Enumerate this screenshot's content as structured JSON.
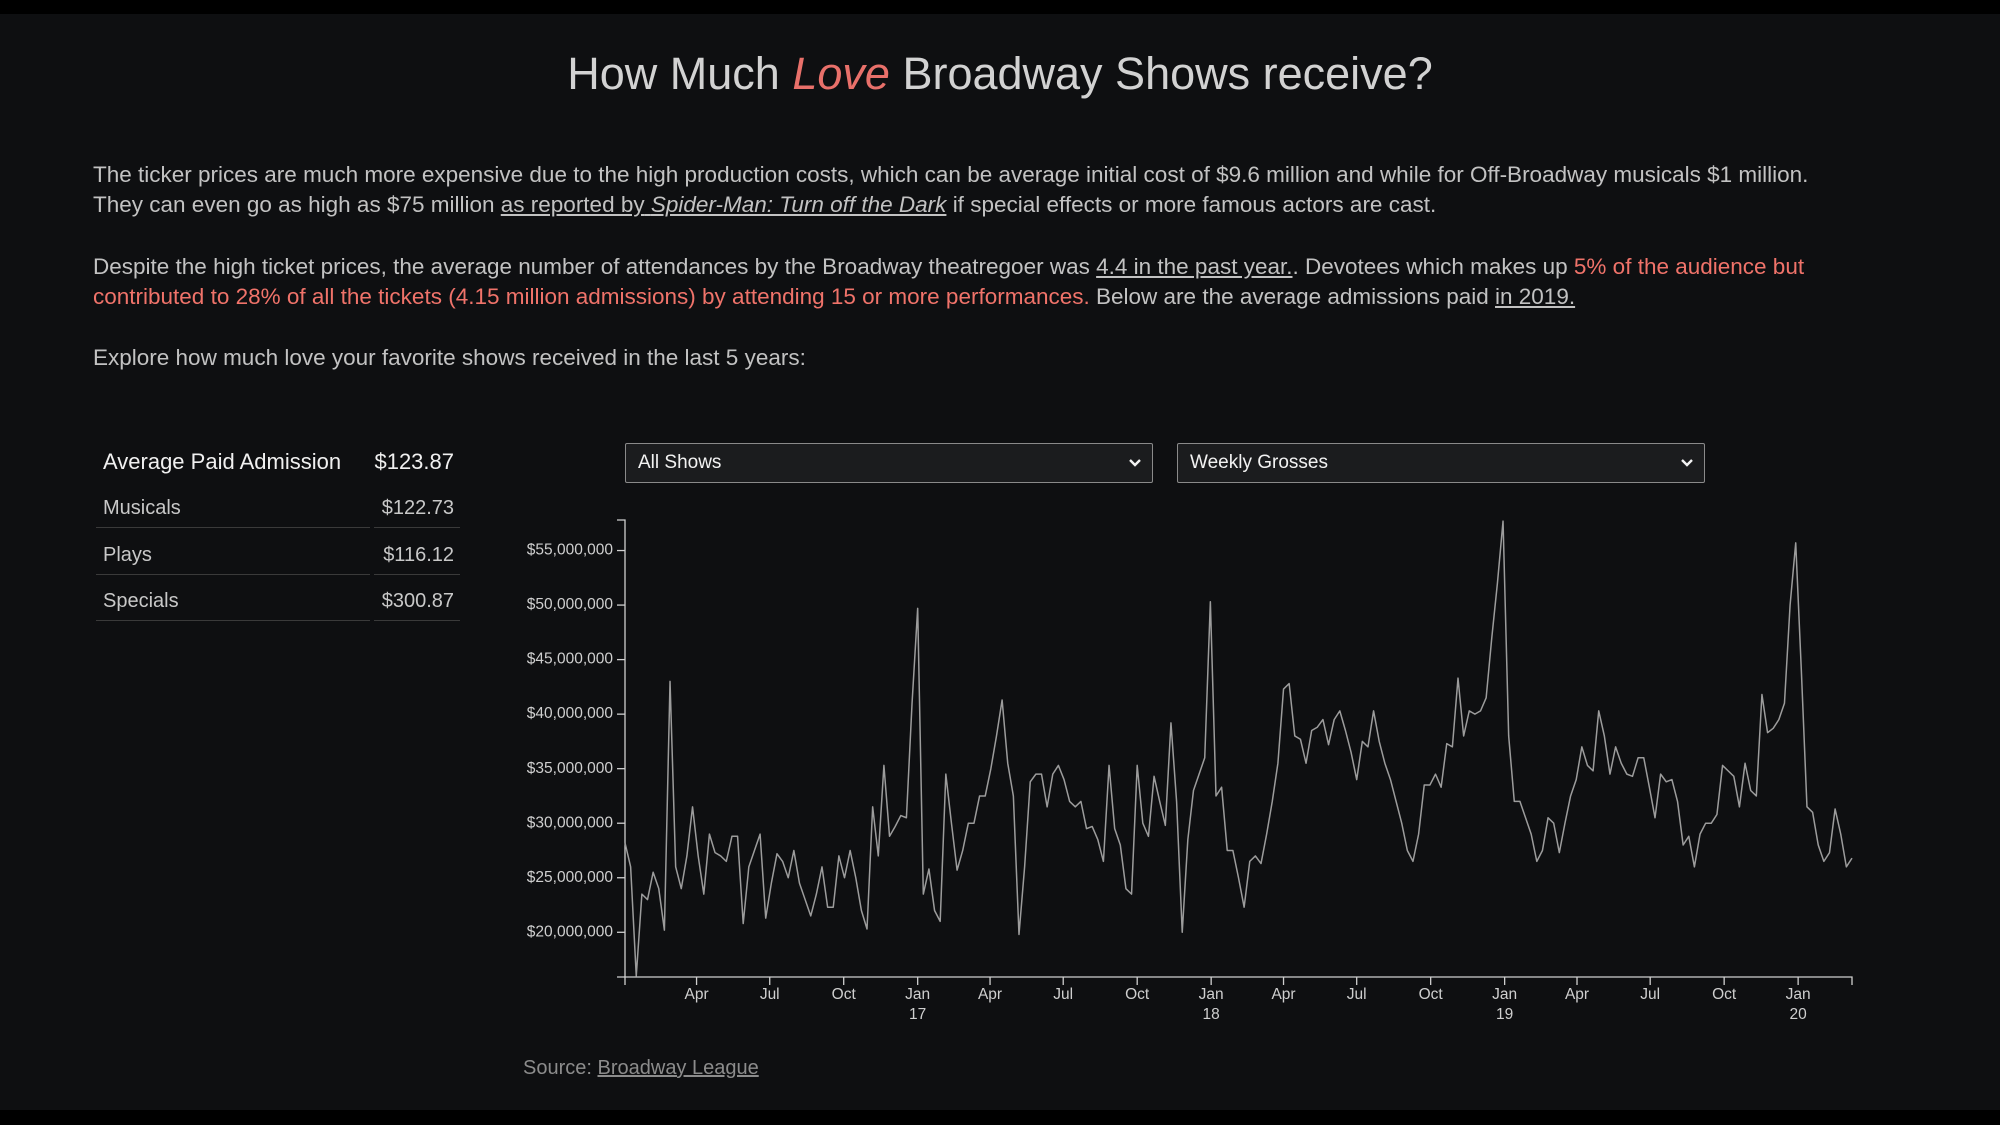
{
  "header": {
    "title_start": "How Much",
    "title_emphasis": "Love",
    "title_end": "Broadway Shows receive?"
  },
  "intro": {
    "paragraph_1": {
      "line_1": "The ticker prices are much more expensive due to the high production costs, which can be average initial cost of $9.6 million and while for Off-Broadway musicals $1 million.",
      "line_2_start": "They can even go as high as $75 million",
      "link_text": "as reported by",
      "link_title": "Spider-Man: Turn off the Dark",
      "line_2_end": "if special effects or more famous actors are cast."
    },
    "paragraph_2": {
      "text_start": "Despite the high ticket prices, the average number of attendances by the Broadway theatregoer was",
      "link_1": "4.4 in the past year.",
      "text_middle": ". Devotees which makes up",
      "highlight_line_1": "5% of the audience but",
      "highlight_line_2": "contributed to 28% of all the tickets (4.15 million admissions) by attending 15 or more performances.",
      "text_end": "Below are the average admissions paid",
      "link_2": "in 2019."
    },
    "paragraph_3": "Explore how much love your favorite shows received in the last 5 years:"
  },
  "summary_table": {
    "header": [
      "Average Paid Admission",
      "$123.87"
    ],
    "rows": [
      [
        "Musicals",
        "$122.73"
      ],
      [
        "Plays",
        "$116.12"
      ],
      [
        "Specials",
        "$300.87"
      ]
    ]
  },
  "controls": {
    "show_filter": "All Shows",
    "metric": "Weekly Grosses"
  },
  "chart_data": {
    "type": "line",
    "color": "#9c9c9c",
    "xlim": [
      "2016-01-03",
      "2020-03-08"
    ],
    "ylim": [
      15900000,
      57800000
    ],
    "yticks": [
      {
        "value": 20000000,
        "label": "$20,000,000"
      },
      {
        "value": 25000000,
        "label": "$25,000,000"
      },
      {
        "value": 30000000,
        "label": "$30,000,000"
      },
      {
        "value": 35000000,
        "label": "$35,000,000"
      },
      {
        "value": 40000000,
        "label": "$40,000,000"
      },
      {
        "value": 45000000,
        "label": "$45,000,000"
      },
      {
        "value": 50000000,
        "label": "$50,000,000"
      },
      {
        "value": 55000000,
        "label": "$55,000,000"
      }
    ],
    "xticks": [
      {
        "value": "2016-04-01",
        "label": "Apr"
      },
      {
        "value": "2016-07-01",
        "label": "Jul"
      },
      {
        "value": "2016-10-01",
        "label": "Oct"
      },
      {
        "value": "2017-01-01",
        "label": "Jan",
        "year_label": "17"
      },
      {
        "value": "2017-04-01",
        "label": "Apr"
      },
      {
        "value": "2017-07-01",
        "label": "Jul"
      },
      {
        "value": "2017-10-01",
        "label": "Oct"
      },
      {
        "value": "2018-01-01",
        "label": "Jan",
        "year_label": "18"
      },
      {
        "value": "2018-04-01",
        "label": "Apr"
      },
      {
        "value": "2018-07-01",
        "label": "Jul"
      },
      {
        "value": "2018-10-01",
        "label": "Oct"
      },
      {
        "value": "2019-01-01",
        "label": "Jan",
        "year_label": "19"
      },
      {
        "value": "2019-04-01",
        "label": "Apr"
      },
      {
        "value": "2019-07-01",
        "label": "Jul"
      },
      {
        "value": "2019-10-01",
        "label": "Oct"
      },
      {
        "value": "2020-01-01",
        "label": "Jan",
        "year_label": "20"
      }
    ],
    "x": [
      "2016-01-03",
      "2016-01-10",
      "2016-01-17",
      "2016-01-24",
      "2016-01-31",
      "2016-02-07",
      "2016-02-14",
      "2016-02-21",
      "2016-02-28",
      "2016-03-06",
      "2016-03-13",
      "2016-03-20",
      "2016-03-27",
      "2016-04-03",
      "2016-04-10",
      "2016-04-17",
      "2016-04-24",
      "2016-05-01",
      "2016-05-08",
      "2016-05-15",
      "2016-05-22",
      "2016-05-29",
      "2016-06-05",
      "2016-06-12",
      "2016-06-19",
      "2016-06-26",
      "2016-07-03",
      "2016-07-10",
      "2016-07-17",
      "2016-07-24",
      "2016-07-31",
      "2016-08-07",
      "2016-08-14",
      "2016-08-21",
      "2016-08-28",
      "2016-09-04",
      "2016-09-11",
      "2016-09-18",
      "2016-09-25",
      "2016-10-02",
      "2016-10-09",
      "2016-10-16",
      "2016-10-23",
      "2016-10-30",
      "2016-11-06",
      "2016-11-13",
      "2016-11-20",
      "2016-11-27",
      "2016-12-04",
      "2016-12-11",
      "2016-12-18",
      "2016-12-25",
      "2017-01-01",
      "2017-01-08",
      "2017-01-15",
      "2017-01-22",
      "2017-01-29",
      "2017-02-05",
      "2017-02-12",
      "2017-02-19",
      "2017-02-26",
      "2017-03-05",
      "2017-03-12",
      "2017-03-19",
      "2017-03-26",
      "2017-04-02",
      "2017-04-09",
      "2017-04-16",
      "2017-04-23",
      "2017-04-30",
      "2017-05-07",
      "2017-05-14",
      "2017-05-21",
      "2017-05-28",
      "2017-06-04",
      "2017-06-11",
      "2017-06-18",
      "2017-06-25",
      "2017-07-02",
      "2017-07-09",
      "2017-07-16",
      "2017-07-23",
      "2017-07-30",
      "2017-08-06",
      "2017-08-13",
      "2017-08-20",
      "2017-08-27",
      "2017-09-03",
      "2017-09-10",
      "2017-09-17",
      "2017-09-24",
      "2017-10-01",
      "2017-10-08",
      "2017-10-15",
      "2017-10-22",
      "2017-10-29",
      "2017-11-05",
      "2017-11-12",
      "2017-11-19",
      "2017-11-26",
      "2017-12-03",
      "2017-12-10",
      "2017-12-17",
      "2017-12-24",
      "2017-12-31",
      "2018-01-07",
      "2018-01-14",
      "2018-01-21",
      "2018-01-28",
      "2018-02-04",
      "2018-02-11",
      "2018-02-18",
      "2018-02-25",
      "2018-03-04",
      "2018-03-11",
      "2018-03-18",
      "2018-03-25",
      "2018-04-01",
      "2018-04-08",
      "2018-04-15",
      "2018-04-22",
      "2018-04-29",
      "2018-05-06",
      "2018-05-13",
      "2018-05-20",
      "2018-05-27",
      "2018-06-03",
      "2018-06-10",
      "2018-06-17",
      "2018-06-24",
      "2018-07-01",
      "2018-07-08",
      "2018-07-15",
      "2018-07-22",
      "2018-07-29",
      "2018-08-05",
      "2018-08-12",
      "2018-08-19",
      "2018-08-26",
      "2018-09-02",
      "2018-09-09",
      "2018-09-16",
      "2018-09-23",
      "2018-09-30",
      "2018-10-07",
      "2018-10-14",
      "2018-10-21",
      "2018-10-28",
      "2018-11-04",
      "2018-11-11",
      "2018-11-18",
      "2018-11-25",
      "2018-12-02",
      "2018-12-09",
      "2018-12-16",
      "2018-12-23",
      "2018-12-30",
      "2019-01-06",
      "2019-01-13",
      "2019-01-20",
      "2019-01-27",
      "2019-02-03",
      "2019-02-10",
      "2019-02-17",
      "2019-02-24",
      "2019-03-03",
      "2019-03-10",
      "2019-03-17",
      "2019-03-24",
      "2019-03-31",
      "2019-04-07",
      "2019-04-14",
      "2019-04-21",
      "2019-04-28",
      "2019-05-05",
      "2019-05-12",
      "2019-05-19",
      "2019-05-26",
      "2019-06-02",
      "2019-06-09",
      "2019-06-16",
      "2019-06-23",
      "2019-06-30",
      "2019-07-07",
      "2019-07-14",
      "2019-07-21",
      "2019-07-28",
      "2019-08-04",
      "2019-08-11",
      "2019-08-18",
      "2019-08-25",
      "2019-09-01",
      "2019-09-08",
      "2019-09-15",
      "2019-09-22",
      "2019-09-29",
      "2019-10-06",
      "2019-10-13",
      "2019-10-20",
      "2019-10-27",
      "2019-11-03",
      "2019-11-10",
      "2019-11-17",
      "2019-11-24",
      "2019-12-01",
      "2019-12-08",
      "2019-12-15",
      "2019-12-22",
      "2019-12-29",
      "2020-01-05",
      "2020-01-12",
      "2020-01-19",
      "2020-01-26",
      "2020-02-02",
      "2020-02-09",
      "2020-02-16",
      "2020-02-23",
      "2020-03-01",
      "2020-03-08"
    ],
    "values": [
      28200000,
      26000000,
      16000000,
      23500000,
      23000000,
      25500000,
      24000000,
      20200000,
      43000000,
      26000000,
      24000000,
      27000000,
      31500000,
      27000000,
      23500000,
      29000000,
      27300000,
      27000000,
      26500000,
      28800000,
      28800000,
      20800000,
      26000000,
      27500000,
      29000000,
      21300000,
      24500000,
      27200000,
      26500000,
      25000000,
      27500000,
      24500000,
      23000000,
      21500000,
      23500000,
      26000000,
      22300000,
      22300000,
      27000000,
      25000000,
      27500000,
      25000000,
      22000000,
      20300000,
      31500000,
      27000000,
      35300000,
      28800000,
      29700000,
      30700000,
      30500000,
      41000000,
      49700000,
      23500000,
      25800000,
      22000000,
      21000000,
      34500000,
      30000000,
      25700000,
      27500000,
      30000000,
      30000000,
      32500000,
      32500000,
      35000000,
      38000000,
      41300000,
      35500000,
      32500000,
      19800000,
      26000000,
      33800000,
      34500000,
      34500000,
      31500000,
      34500000,
      35300000,
      34000000,
      32000000,
      31500000,
      32000000,
      29500000,
      29700000,
      28500000,
      26500000,
      35300000,
      29500000,
      28000000,
      24000000,
      23500000,
      35300000,
      30000000,
      28800000,
      34300000,
      32000000,
      29800000,
      39200000,
      32000000,
      20000000,
      28500000,
      33000000,
      34500000,
      36000000,
      50300000,
      32500000,
      33300000,
      27500000,
      27500000,
      25000000,
      22300000,
      26500000,
      27000000,
      26300000,
      29000000,
      32000000,
      35500000,
      42300000,
      42800000,
      38000000,
      37700000,
      35500000,
      38500000,
      38800000,
      39500000,
      37200000,
      39500000,
      40300000,
      38500000,
      36500000,
      34000000,
      37500000,
      37000000,
      40300000,
      37500000,
      35500000,
      34000000,
      32000000,
      30000000,
      27500000,
      26500000,
      29000000,
      33500000,
      33500000,
      34500000,
      33300000,
      37300000,
      37000000,
      43300000,
      38000000,
      40300000,
      40000000,
      40300000,
      41500000,
      47000000,
      52000000,
      57700000,
      38000000,
      32000000,
      32000000,
      30500000,
      29000000,
      26500000,
      27500000,
      30500000,
      30000000,
      27300000,
      30000000,
      32500000,
      34000000,
      37000000,
      35300000,
      34800000,
      40300000,
      38000000,
      34500000,
      37000000,
      35500000,
      34500000,
      34300000,
      36000000,
      36000000,
      33300000,
      30500000,
      34500000,
      33800000,
      34000000,
      32000000,
      28000000,
      28800000,
      26000000,
      29000000,
      30000000,
      30000000,
      30800000,
      35300000,
      34800000,
      34300000,
      31500000,
      35500000,
      33000000,
      32500000,
      41800000,
      38300000,
      38700000,
      39500000,
      41000000,
      50000000,
      55700000,
      44000000,
      31500000,
      31000000,
      28000000,
      26500000,
      27300000,
      31300000,
      29000000,
      26000000,
      26800000
    ]
  },
  "source": {
    "label": "Source:",
    "link": "Broadway League"
  }
}
